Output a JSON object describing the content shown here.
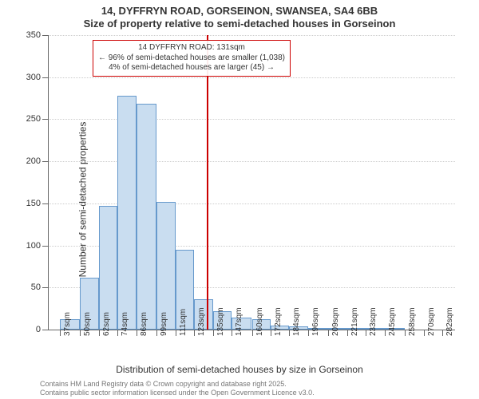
{
  "title_main": "14, DYFFRYN ROAD, GORSEINON, SWANSEA, SA4 6BB",
  "title_sub": "Size of property relative to semi-detached houses in Gorseinon",
  "y_axis_label": "Number of semi-detached properties",
  "x_axis_label": "Distribution of semi-detached houses by size in Gorseinon",
  "footer_line1": "Contains HM Land Registry data © Crown copyright and database right 2025.",
  "footer_line2": "Contains public sector information licensed under the Open Government Licence v3.0.",
  "chart": {
    "type": "histogram",
    "background_color": "#ffffff",
    "grid_color": "#cccccc",
    "axis_color": "#666666",
    "bar_fill": "#c9ddf0",
    "bar_stroke": "#6699cc",
    "marker_color": "#cc0000",
    "marker_width": 2,
    "annotation_border": "#cc0000",
    "ylim": [
      0,
      350
    ],
    "ytick_step": 50,
    "x_categories": [
      "37sqm",
      "50sqm",
      "62sqm",
      "74sqm",
      "86sqm",
      "99sqm",
      "111sqm",
      "123sqm",
      "135sqm",
      "147sqm",
      "160sqm",
      "172sqm",
      "184sqm",
      "196sqm",
      "209sqm",
      "221sqm",
      "233sqm",
      "245sqm",
      "258sqm",
      "270sqm",
      "282sqm"
    ],
    "x_values_numeric": [
      37,
      50,
      62,
      74,
      86,
      99,
      111,
      123,
      135,
      147,
      160,
      172,
      184,
      196,
      209,
      221,
      233,
      245,
      258,
      270,
      282
    ],
    "bar_values": [
      12,
      62,
      147,
      278,
      268,
      152,
      95,
      36,
      22,
      14,
      12,
      5,
      4,
      2,
      2,
      1,
      1,
      1,
      0,
      0,
      0
    ],
    "x_range": [
      30,
      290
    ],
    "marker_x": 131,
    "annotation_lines": [
      "14 DYFFRYN ROAD: 131sqm",
      "← 96% of semi-detached houses are smaller (1,038)",
      "4% of semi-detached houses are larger (45) →"
    ],
    "title_fontsize": 13,
    "label_fontsize": 12,
    "tick_fontsize": 11
  }
}
